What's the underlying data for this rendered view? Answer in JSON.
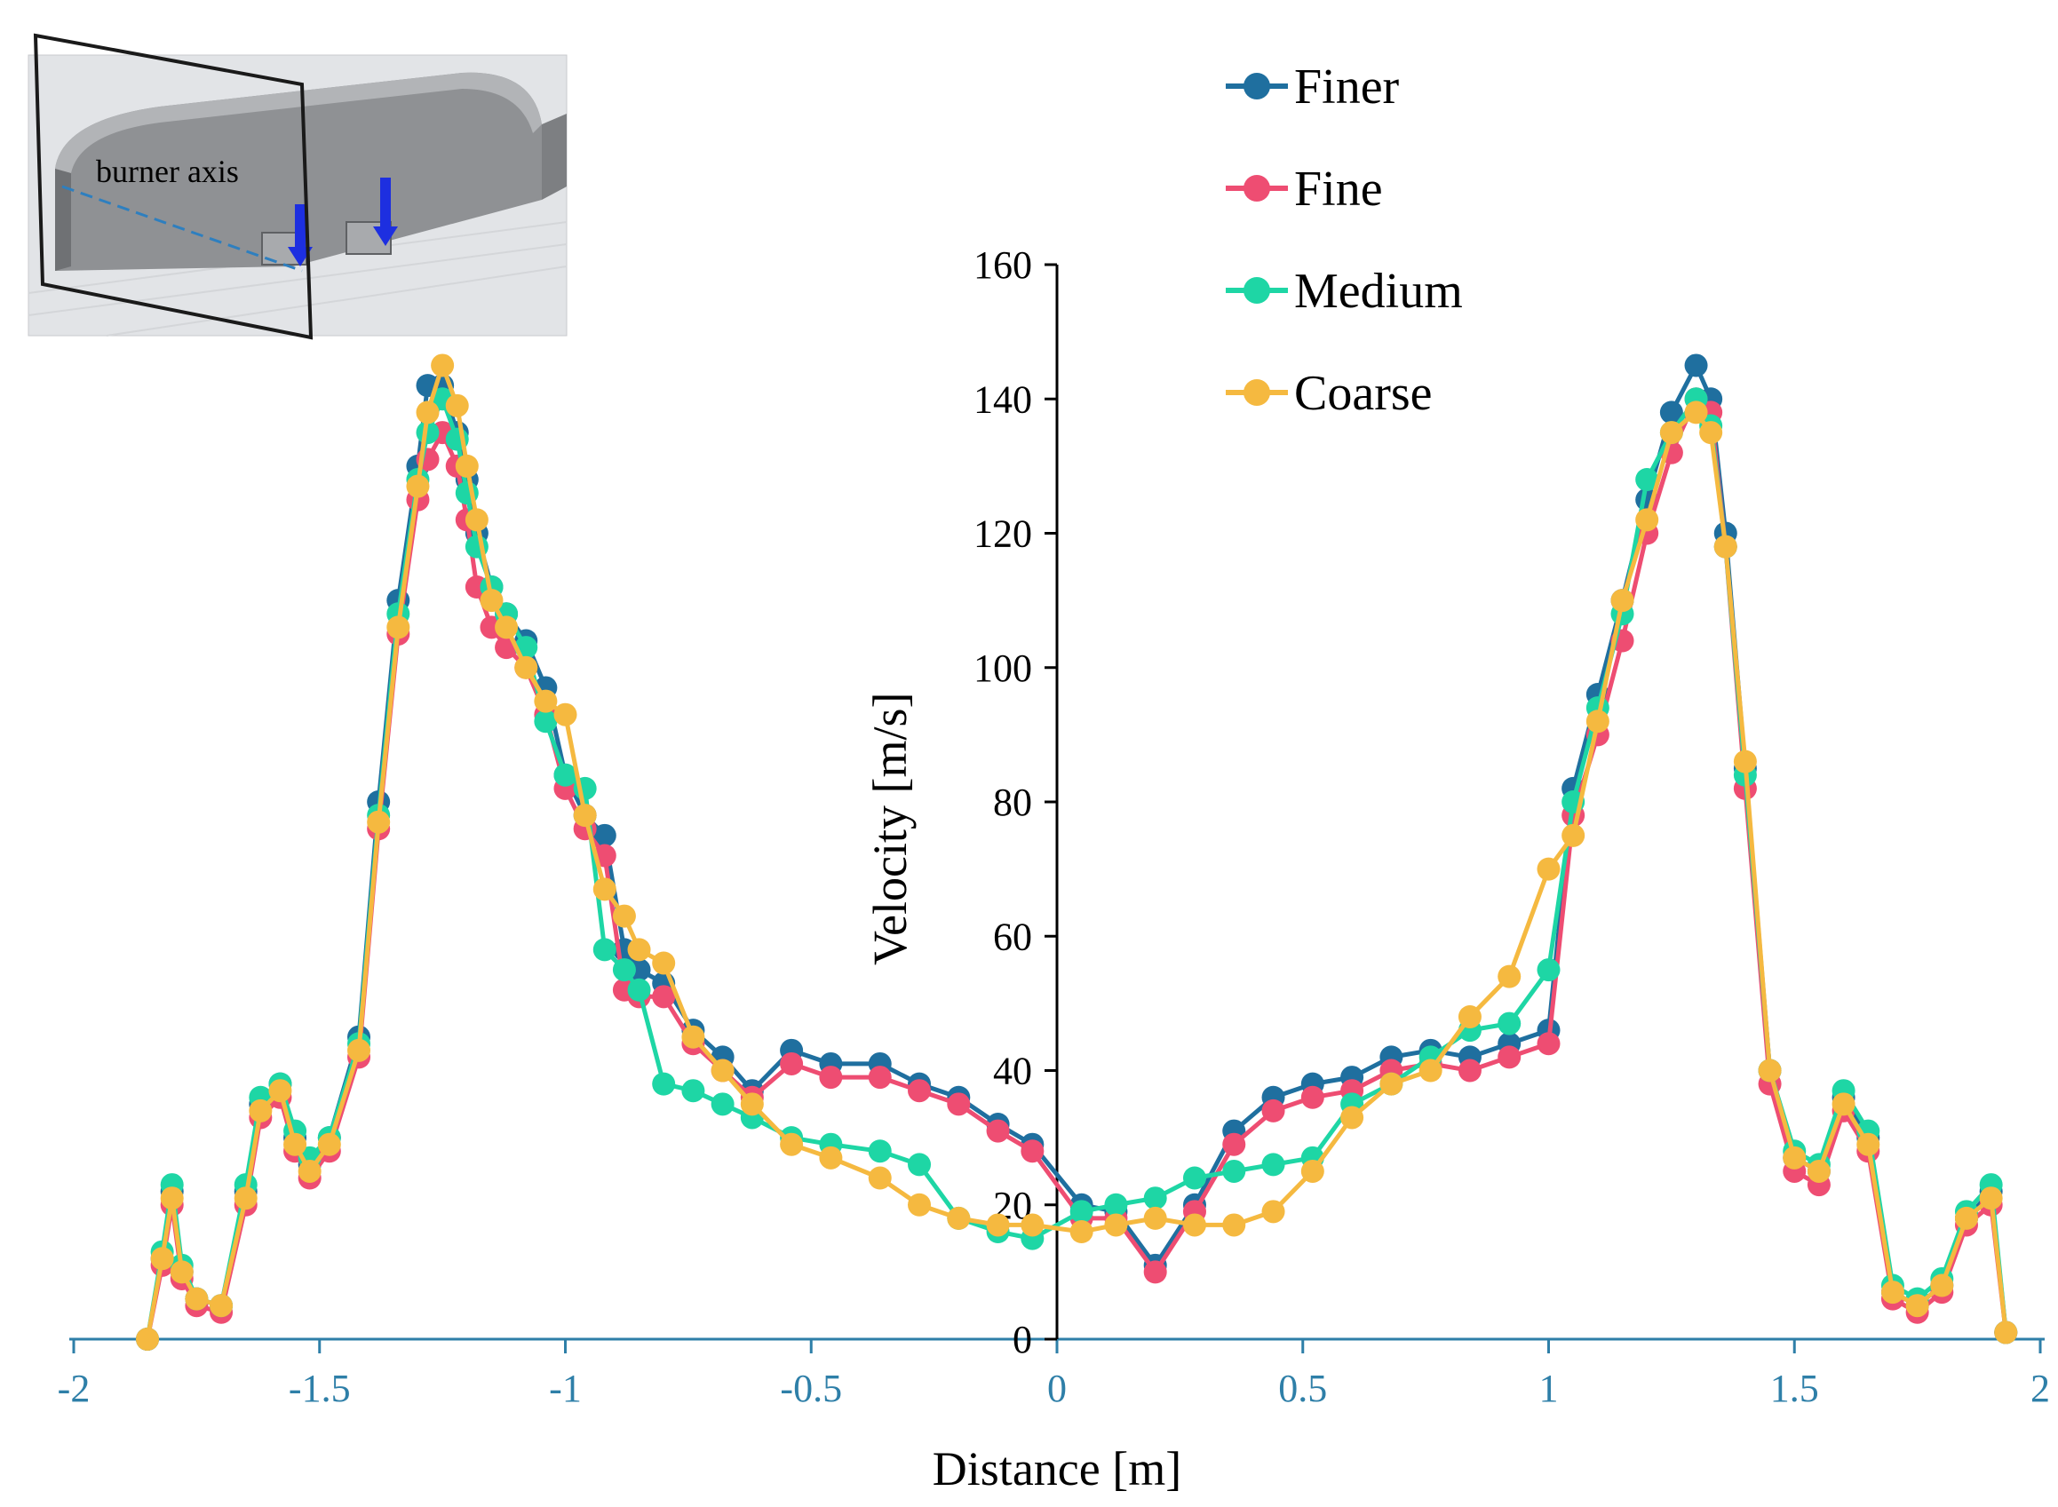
{
  "chart_data": {
    "type": "line",
    "xlabel": "Distance [m]",
    "ylabel": "Velocity [m/s]",
    "xlim": [
      -2,
      2
    ],
    "ylim": [
      0,
      160
    ],
    "x_ticks": [
      -2,
      -1.5,
      -1,
      -0.5,
      0,
      0.5,
      1,
      1.5,
      2
    ],
    "x_tick_labels": [
      "-2",
      "-1.5",
      "-1",
      "-0.5",
      "0",
      "0.5",
      "1",
      "1.5",
      "2"
    ],
    "y_ticks": [
      0,
      20,
      40,
      60,
      80,
      100,
      120,
      140,
      160
    ],
    "y_tick_labels": [
      "0",
      "20",
      "40",
      "60",
      "80",
      "100",
      "120",
      "140",
      "160"
    ],
    "grid": false,
    "legend_position": "top-center",
    "series": [
      {
        "name": "Finer",
        "color": "#1f6f9f",
        "x": [
          -1.85,
          -1.82,
          -1.8,
          -1.78,
          -1.75,
          -1.7,
          -1.65,
          -1.62,
          -1.58,
          -1.55,
          -1.52,
          -1.48,
          -1.42,
          -1.38,
          -1.34,
          -1.3,
          -1.28,
          -1.25,
          -1.22,
          -1.2,
          -1.18,
          -1.15,
          -1.12,
          -1.08,
          -1.04,
          -1.0,
          -0.96,
          -0.92,
          -0.88,
          -0.85,
          -0.8,
          -0.74,
          -0.68,
          -0.62,
          -0.54,
          -0.46,
          -0.36,
          -0.28,
          -0.2,
          -0.12,
          -0.05,
          0.05,
          0.12,
          0.2,
          0.28,
          0.36,
          0.44,
          0.52,
          0.6,
          0.68,
          0.76,
          0.84,
          0.92,
          1.0,
          1.05,
          1.1,
          1.15,
          1.2,
          1.25,
          1.3,
          1.33,
          1.36,
          1.4,
          1.45,
          1.5,
          1.55,
          1.6,
          1.65,
          1.7,
          1.75,
          1.8,
          1.85,
          1.9,
          1.93
        ],
        "values": [
          0,
          12,
          22,
          10,
          6,
          5,
          22,
          35,
          38,
          30,
          26,
          30,
          45,
          80,
          110,
          130,
          142,
          142,
          135,
          128,
          120,
          112,
          108,
          104,
          97,
          84,
          78,
          75,
          58,
          55,
          53,
          46,
          42,
          37,
          43,
          41,
          41,
          38,
          36,
          32,
          29,
          20,
          19,
          11,
          20,
          31,
          36,
          38,
          39,
          42,
          43,
          42,
          44,
          46,
          82,
          96,
          110,
          125,
          138,
          145,
          140,
          120,
          85,
          40,
          27,
          25,
          36,
          30,
          7,
          5,
          8,
          18,
          22,
          1
        ]
      },
      {
        "name": "Fine",
        "color": "#ee4d72",
        "x": [
          -1.85,
          -1.82,
          -1.8,
          -1.78,
          -1.75,
          -1.7,
          -1.65,
          -1.62,
          -1.58,
          -1.55,
          -1.52,
          -1.48,
          -1.42,
          -1.38,
          -1.34,
          -1.3,
          -1.28,
          -1.25,
          -1.22,
          -1.2,
          -1.18,
          -1.15,
          -1.12,
          -1.08,
          -1.04,
          -1.0,
          -0.96,
          -0.92,
          -0.88,
          -0.85,
          -0.8,
          -0.74,
          -0.68,
          -0.62,
          -0.54,
          -0.46,
          -0.36,
          -0.28,
          -0.2,
          -0.12,
          -0.05,
          0.05,
          0.12,
          0.2,
          0.28,
          0.36,
          0.44,
          0.52,
          0.6,
          0.68,
          0.76,
          0.84,
          0.92,
          1.0,
          1.05,
          1.1,
          1.15,
          1.2,
          1.25,
          1.3,
          1.33,
          1.36,
          1.4,
          1.45,
          1.5,
          1.55,
          1.6,
          1.65,
          1.7,
          1.75,
          1.8,
          1.85,
          1.9,
          1.93
        ],
        "values": [
          0,
          11,
          20,
          9,
          5,
          4,
          20,
          33,
          36,
          28,
          24,
          28,
          42,
          76,
          105,
          125,
          131,
          135,
          130,
          122,
          112,
          106,
          103,
          100,
          93,
          82,
          76,
          72,
          52,
          51,
          51,
          44,
          40,
          36,
          41,
          39,
          39,
          37,
          35,
          31,
          28,
          18,
          18,
          10,
          19,
          29,
          34,
          36,
          37,
          40,
          41,
          40,
          42,
          44,
          78,
          90,
          104,
          120,
          132,
          140,
          138,
          118,
          82,
          38,
          25,
          23,
          34,
          28,
          6,
          4,
          7,
          17,
          20,
          1
        ]
      },
      {
        "name": "Medium",
        "color": "#1ed6a5",
        "x": [
          -1.85,
          -1.82,
          -1.8,
          -1.78,
          -1.75,
          -1.7,
          -1.65,
          -1.62,
          -1.58,
          -1.55,
          -1.52,
          -1.48,
          -1.42,
          -1.38,
          -1.34,
          -1.3,
          -1.28,
          -1.25,
          -1.22,
          -1.2,
          -1.18,
          -1.15,
          -1.12,
          -1.08,
          -1.04,
          -1.0,
          -0.96,
          -0.92,
          -0.88,
          -0.85,
          -0.8,
          -0.74,
          -0.68,
          -0.62,
          -0.54,
          -0.46,
          -0.36,
          -0.28,
          -0.2,
          -0.12,
          -0.05,
          0.05,
          0.12,
          0.2,
          0.28,
          0.36,
          0.44,
          0.52,
          0.6,
          0.68,
          0.76,
          0.84,
          0.92,
          1.0,
          1.05,
          1.1,
          1.15,
          1.2,
          1.25,
          1.3,
          1.33,
          1.36,
          1.4,
          1.45,
          1.5,
          1.55,
          1.6,
          1.65,
          1.7,
          1.75,
          1.8,
          1.85,
          1.9,
          1.93
        ],
        "values": [
          0,
          13,
          23,
          11,
          6,
          5,
          23,
          36,
          38,
          31,
          27,
          30,
          44,
          78,
          108,
          128,
          135,
          140,
          134,
          126,
          118,
          112,
          108,
          103,
          92,
          84,
          82,
          58,
          55,
          52,
          38,
          37,
          35,
          33,
          30,
          29,
          28,
          26,
          18,
          16,
          15,
          19,
          20,
          21,
          24,
          25,
          26,
          27,
          35,
          38,
          42,
          46,
          47,
          55,
          80,
          94,
          108,
          128,
          135,
          140,
          136,
          118,
          84,
          40,
          28,
          26,
          37,
          31,
          8,
          6,
          9,
          19,
          23,
          1
        ]
      },
      {
        "name": "Coarse",
        "color": "#f5b940",
        "x": [
          -1.85,
          -1.82,
          -1.8,
          -1.78,
          -1.75,
          -1.7,
          -1.65,
          -1.62,
          -1.58,
          -1.55,
          -1.52,
          -1.48,
          -1.42,
          -1.38,
          -1.34,
          -1.3,
          -1.28,
          -1.25,
          -1.22,
          -1.2,
          -1.18,
          -1.15,
          -1.12,
          -1.08,
          -1.04,
          -1.0,
          -0.96,
          -0.92,
          -0.88,
          -0.85,
          -0.8,
          -0.74,
          -0.68,
          -0.62,
          -0.54,
          -0.46,
          -0.36,
          -0.28,
          -0.2,
          -0.12,
          -0.05,
          0.05,
          0.12,
          0.2,
          0.28,
          0.36,
          0.44,
          0.52,
          0.6,
          0.68,
          0.76,
          0.84,
          0.92,
          1.0,
          1.05,
          1.1,
          1.15,
          1.2,
          1.25,
          1.3,
          1.33,
          1.36,
          1.4,
          1.45,
          1.5,
          1.55,
          1.6,
          1.65,
          1.7,
          1.75,
          1.8,
          1.85,
          1.9,
          1.93
        ],
        "values": [
          0,
          12,
          21,
          10,
          6,
          5,
          21,
          34,
          37,
          29,
          25,
          29,
          43,
          77,
          106,
          127,
          138,
          145,
          139,
          130,
          122,
          110,
          106,
          100,
          95,
          93,
          78,
          67,
          63,
          58,
          56,
          45,
          40,
          35,
          29,
          27,
          24,
          20,
          18,
          17,
          17,
          16,
          17,
          18,
          17,
          17,
          19,
          25,
          33,
          38,
          40,
          48,
          54,
          70,
          75,
          92,
          110,
          122,
          135,
          138,
          135,
          118,
          86,
          40,
          27,
          25,
          35,
          29,
          7,
          5,
          8,
          18,
          21,
          1
        ]
      }
    ]
  },
  "inset": {
    "label": "burner axis"
  }
}
